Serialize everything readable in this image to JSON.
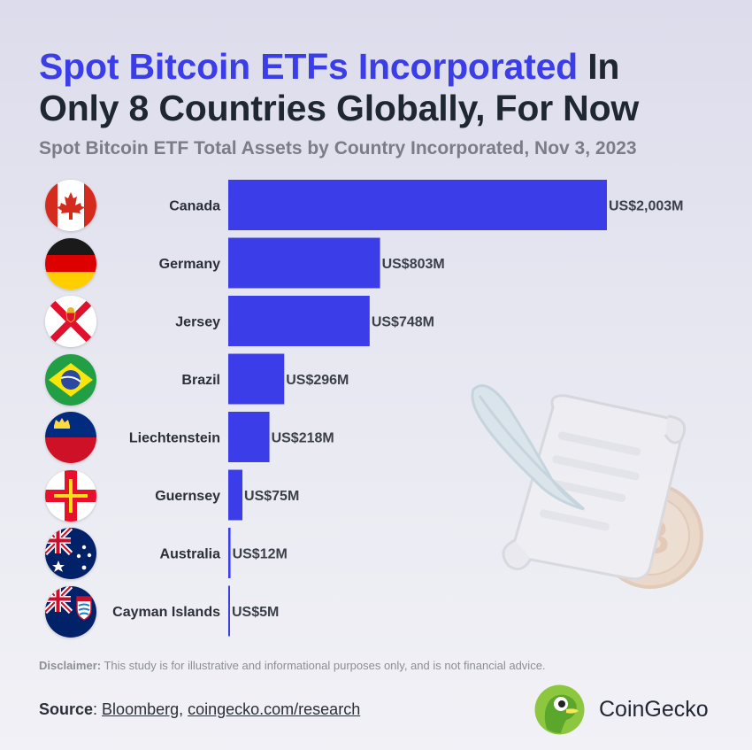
{
  "header": {
    "title_highlight": "Spot Bitcoin ETFs Incorporated",
    "title_rest_line1": " In",
    "title_line2": "Only 8 Countries Globally, For Now",
    "subtitle": "Spot Bitcoin ETF Total Assets by Country Incorporated, Nov 3, 2023"
  },
  "chart_data": {
    "type": "bar",
    "orientation": "horizontal",
    "title": "Spot Bitcoin ETFs Incorporated In Only 8 Countries Globally, For Now",
    "subtitle": "Spot Bitcoin ETF Total Assets by Country Incorporated, Nov 3, 2023",
    "categories": [
      "Canada",
      "Germany",
      "Jersey",
      "Brazil",
      "Liechtenstein",
      "Guernsey",
      "Australia",
      "Cayman Islands"
    ],
    "values": [
      2003,
      803,
      748,
      296,
      218,
      75,
      12,
      5
    ],
    "value_labels": [
      "US$2,003M",
      "US$803M",
      "US$748M",
      "US$296M",
      "US$218M",
      "US$75M",
      "US$12M",
      "US$5M"
    ],
    "xlim": [
      0,
      2003
    ],
    "grid": false,
    "bar_color": "#3b3ee8"
  },
  "flags": [
    "canada-flag-icon",
    "germany-flag-icon",
    "jersey-flag-icon",
    "brazil-flag-icon",
    "liechtenstein-flag-icon",
    "guernsey-flag-icon",
    "australia-flag-icon",
    "cayman-islands-flag-icon"
  ],
  "footer": {
    "disclaimer_label": "Disclaimer:",
    "disclaimer_text": " This study is for illustrative and informational purposes only, and is not financial advice.",
    "source_label": "Source",
    "source_sep": ": ",
    "source_link1": "Bloomberg",
    "source_comma": ", ",
    "source_link2": "coingecko.com/research",
    "brand_name": "CoinGecko"
  },
  "decoration": {
    "coin_icon": "bitcoin-icon",
    "illustration": "quill-scroll-illustration"
  },
  "colors": {
    "accent": "#3b3ee8",
    "text": "#1f2733",
    "muted": "#7a7d86"
  }
}
